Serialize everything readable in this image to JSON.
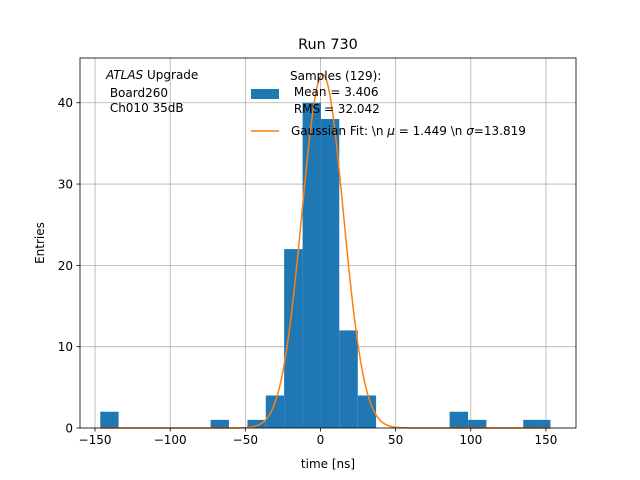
{
  "chart_data": {
    "type": "bar",
    "title": "Run 730",
    "xlabel": "time [ns]",
    "ylabel": "Entries",
    "xlim": [
      -160,
      170
    ],
    "ylim": [
      0,
      45.5
    ],
    "xticks": [
      -150,
      -100,
      -50,
      0,
      50,
      100,
      150
    ],
    "yticks": [
      0,
      10,
      20,
      30,
      40
    ],
    "grid": true,
    "annotation": {
      "line1_italic": "ATLAS",
      "line1_rest": " Upgrade",
      "line2": " Board260",
      "line3": " Ch010 35dB"
    },
    "legend": {
      "placement": "top-right",
      "samples_lines": [
        "Samples (129):",
        " Mean = 3.406",
        " RMS = 32.042"
      ],
      "fit_label_prefix": "Gaussian Fit: \\n ",
      "fit_mu_symbol": "μ",
      "fit_mu_value": " = 1.449 \\n ",
      "fit_sigma_symbol": "σ",
      "fit_sigma_value": "=13.819"
    },
    "histogram": {
      "name": "Samples",
      "color": "#1f77b4",
      "bin_edges": [
        -146.5,
        -134.3,
        -122.0,
        -109.8,
        -97.6,
        -85.3,
        -73.1,
        -60.9,
        -48.6,
        -36.4,
        -24.2,
        -11.9,
        0.3,
        12.5,
        24.8,
        37.0,
        49.2,
        61.5,
        73.7,
        85.9,
        98.2,
        110.4,
        122.6,
        134.9,
        147.1,
        153.0
      ],
      "counts": [
        2,
        0,
        0,
        0,
        0,
        0,
        1,
        0,
        1,
        4,
        22,
        40,
        38,
        12,
        4,
        0,
        0,
        0,
        0,
        2,
        1,
        0,
        0,
        1,
        1
      ]
    },
    "fit": {
      "name": "Gaussian Fit",
      "color": "#ff7f0e",
      "mu": 1.449,
      "sigma": 13.819,
      "amplitude": 43.5,
      "x_range": [
        -146.5,
        153.0
      ]
    }
  }
}
